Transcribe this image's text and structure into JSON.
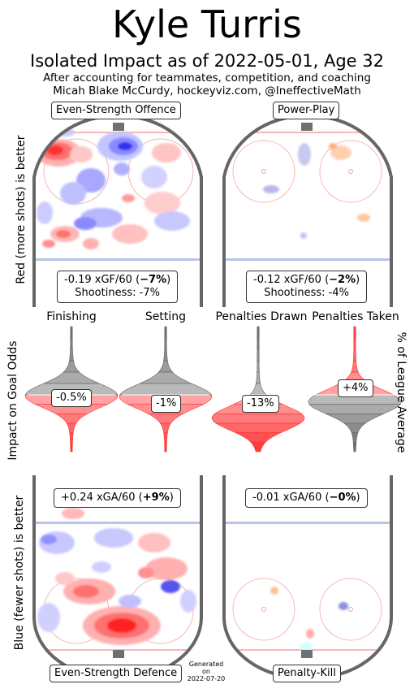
{
  "header": {
    "title": "Kyle Turris",
    "subtitle": "Isolated Impact as of 2022-05-01, Age 32",
    "note_line1": "After accounting for teammates, competition, and coaching",
    "note_line2": "Micah Blake McCurdy, hockeyviz.com, @IneffectiveMath"
  },
  "side_labels": {
    "top_left": "Red (more shots) is better",
    "mid_left": "Impact on Goal Odds",
    "mid_right": "% of League Average",
    "bottom_left": "Blue (fewer shots) is better"
  },
  "panels": {
    "ev_offence": {
      "label": "Even-Strength Offence",
      "stat_main": "-0.19 xGF/60 (",
      "stat_bold": "−7%",
      "stat_close": ")",
      "stat_sub": "Shootiness: -7%"
    },
    "powerplay": {
      "label": "Power-Play",
      "stat_main": "-0.12 xGF/60 (",
      "stat_bold": "−2%",
      "stat_close": ")",
      "stat_sub": "Shootiness: -4%"
    },
    "ev_defence": {
      "label": "Even-Strength Defence",
      "stat_main": "+0.24 xGA/60 (",
      "stat_bold": "+9%",
      "stat_close": ")"
    },
    "penalty_kill": {
      "label": "Penalty-Kill",
      "stat_main": "-0.01 xGA/60 (",
      "stat_bold": "−0%",
      "stat_close": ")"
    }
  },
  "generated": {
    "line1": "Generated",
    "line2": "on",
    "date": "2022-07-20"
  },
  "colors": {
    "red": "#ff3333",
    "blue": "#5555ff",
    "grey": "#666666",
    "rink": "#666666"
  },
  "chart_data": {
    "type": "violin",
    "title": "Kyle Turris",
    "subtitle": "Isolated Impact as of 2022-05-01, Age 32",
    "ylabel": "Impact on Goal Odds",
    "y2label": "% of League Average",
    "categories": [
      "Finishing",
      "Setting",
      "Penalties Drawn",
      "Penalties Taken"
    ],
    "values": [
      -0.5,
      -1,
      -13,
      4
    ],
    "value_labels": [
      "-0.5%",
      "-1%",
      "-13%",
      "+4%"
    ],
    "unit": "%"
  }
}
